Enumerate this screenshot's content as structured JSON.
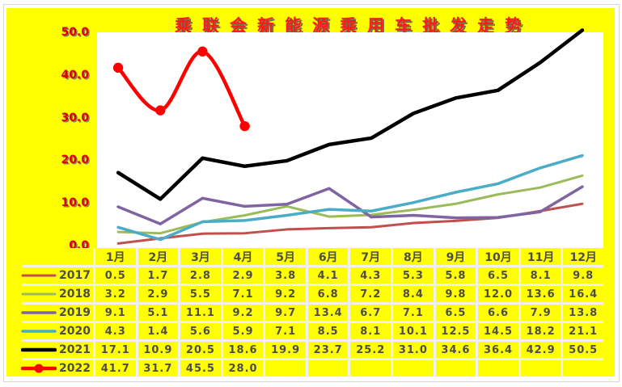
{
  "title": "乘联会新能源乘用车批发走势",
  "colors": {
    "panel_background": "#FFFF00",
    "plot_background": "#FFFFFF",
    "title_color": "#FF1A1A",
    "axis_label_color": "#E00000",
    "table_text_color": "#4D4D4D",
    "grid_gap_color": "#F0F0F0"
  },
  "chart_data": {
    "type": "line",
    "title": "乘联会新能源乘用车批发走势",
    "xlabel": "",
    "ylabel": "",
    "ylim": [
      0,
      50
    ],
    "grid": false,
    "legend_position": "table-left-column",
    "yticks": [
      "50.0",
      "40.0",
      "30.0",
      "20.0",
      "10.0",
      "0.0"
    ],
    "categories": [
      "1月",
      "2月",
      "3月",
      "4月",
      "5月",
      "6月",
      "7月",
      "8月",
      "9月",
      "10月",
      "11月",
      "12月"
    ],
    "series": [
      {
        "name": "2017",
        "color": "#C0504D",
        "marker": false,
        "smooth": false,
        "width": 3,
        "values": [
          0.5,
          1.7,
          2.8,
          2.9,
          3.8,
          4.1,
          4.3,
          5.3,
          5.8,
          6.5,
          8.1,
          9.8
        ]
      },
      {
        "name": "2018",
        "color": "#9BBB59",
        "marker": false,
        "smooth": false,
        "width": 3,
        "values": [
          3.2,
          2.9,
          5.5,
          7.1,
          9.2,
          6.8,
          7.2,
          8.4,
          9.8,
          12.0,
          13.6,
          16.4
        ]
      },
      {
        "name": "2019",
        "color": "#8064A2",
        "marker": false,
        "smooth": false,
        "width": 3.5,
        "values": [
          9.1,
          5.1,
          11.1,
          9.2,
          9.7,
          13.4,
          6.7,
          7.1,
          6.5,
          6.6,
          7.9,
          13.8
        ]
      },
      {
        "name": "2020",
        "color": "#4BACC6",
        "marker": false,
        "smooth": false,
        "width": 3.5,
        "values": [
          4.3,
          1.4,
          5.6,
          5.9,
          7.1,
          8.5,
          8.1,
          10.1,
          12.5,
          14.5,
          18.2,
          21.1
        ]
      },
      {
        "name": "2021",
        "color": "#000000",
        "marker": false,
        "smooth": false,
        "width": 4.5,
        "values": [
          17.1,
          10.9,
          20.5,
          18.6,
          19.9,
          23.7,
          25.2,
          31.0,
          34.6,
          36.4,
          42.9,
          50.5
        ]
      },
      {
        "name": "2022",
        "color": "#FF0000",
        "marker": true,
        "smooth": true,
        "width": 4.5,
        "values": [
          41.7,
          31.7,
          45.5,
          28.0
        ]
      }
    ]
  },
  "table": {
    "corner_label": "",
    "column_headers": [
      "1月",
      "2月",
      "3月",
      "4月",
      "5月",
      "6月",
      "7月",
      "8月",
      "9月",
      "10月",
      "11月",
      "12月"
    ],
    "rows": [
      {
        "year": "2017",
        "cells": [
          "0.5",
          "1.7",
          "2.8",
          "2.9",
          "3.8",
          "4.1",
          "4.3",
          "5.3",
          "5.8",
          "6.5",
          "8.1",
          "9.8"
        ]
      },
      {
        "year": "2018",
        "cells": [
          "3.2",
          "2.9",
          "5.5",
          "7.1",
          "9.2",
          "6.8",
          "7.2",
          "8.4",
          "9.8",
          "12.0",
          "13.6",
          "16.4"
        ]
      },
      {
        "year": "2019",
        "cells": [
          "9.1",
          "5.1",
          "11.1",
          "9.2",
          "9.7",
          "13.4",
          "6.7",
          "7.1",
          "6.5",
          "6.6",
          "7.9",
          "13.8"
        ]
      },
      {
        "year": "2020",
        "cells": [
          "4.3",
          "1.4",
          "5.6",
          "5.9",
          "7.1",
          "8.5",
          "8.1",
          "10.1",
          "12.5",
          "14.5",
          "18.2",
          "21.1"
        ]
      },
      {
        "year": "2021",
        "cells": [
          "17.1",
          "10.9",
          "20.5",
          "18.6",
          "19.9",
          "23.7",
          "25.2",
          "31.0",
          "34.6",
          "36.4",
          "42.9",
          "50.5"
        ]
      },
      {
        "year": "2022",
        "cells": [
          "41.7",
          "31.7",
          "45.5",
          "28.0",
          "",
          "",
          "",
          "",
          "",
          "",
          "",
          ""
        ]
      }
    ]
  }
}
